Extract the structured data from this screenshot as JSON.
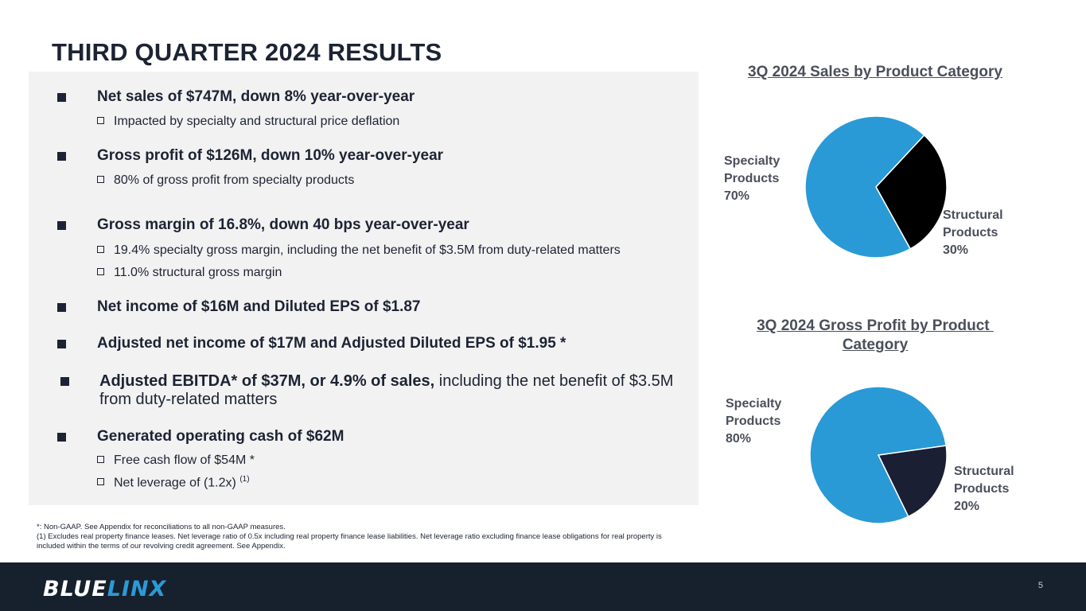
{
  "slide": {
    "title": "THIRD QUARTER 2024 RESULTS",
    "page_number": "5"
  },
  "bullets": {
    "net_sales": {
      "bold": "Net sales of $747M",
      "rest": ", down 8% year-over-year",
      "subs": [
        "Impacted by specialty and structural price deflation"
      ]
    },
    "gross_profit": {
      "text": "Gross profit of $126M, down 10% year-over-year",
      "subs": [
        "80% of gross profit from specialty products"
      ]
    },
    "gross_margin": {
      "text": "Gross margin of 16.8%, down 40 bps year-over-year",
      "subs": [
        "19.4% specialty gross margin, including the net benefit of $3.5M from duty-related matters",
        "11.0% structural gross margin"
      ]
    },
    "net_income": {
      "text": "Net income of $16M and Diluted EPS of $1.87"
    },
    "adj_net_income": {
      "text": "Adjusted net income of $17M and Adjusted Diluted EPS of $1.95 *"
    },
    "adj_ebitda": {
      "bold": "Adjusted EBITDA* of $37M, or 4.9% of sales,",
      "rest_line1": " including the net benefit of $3.5M",
      "rest_line2": "from duty-related matters"
    },
    "cash": {
      "text": "Generated operating cash of $62M",
      "subs": [
        "Free cash flow of $54M *",
        "Net leverage of (1.2x)"
      ],
      "sup": "(1)"
    }
  },
  "footnotes": {
    "line1": "*: Non-GAAP.  See Appendix for reconciliations to all non-GAAP measures.",
    "line2": "(1) Excludes real property finance leases. Net leverage ratio of 0.5x including real property finance lease liabilities.  Net leverage ratio excluding finance lease obligations for real property is included within the terms of our revolving credit agreement.  See Appendix."
  },
  "footer": {
    "logo_part1": "BLUE",
    "logo_part2": "LINX"
  },
  "colors": {
    "specialty": "#2a9ad6",
    "structural_sales": "#000000",
    "structural_gp": "#1b1f33",
    "footer": "#17202d"
  },
  "chart_data": [
    {
      "type": "pie",
      "title": "3Q 2024 Sales by Product Category",
      "slices": [
        {
          "name": "Specialty Products",
          "label_line1": "Specialty",
          "label_line2": "Products",
          "percent_label": "70%",
          "value": 70
        },
        {
          "name": "Structural Products",
          "label_line1": "Structural",
          "label_line2": "Products",
          "percent_label": "30%",
          "value": 30
        }
      ]
    },
    {
      "type": "pie",
      "title_line1": "3Q 2024 Gross Profit by Product ",
      "title_line2": "Category",
      "slices": [
        {
          "name": "Specialty Products",
          "label_line1": "Specialty",
          "label_line2": "Products",
          "percent_label": "80%",
          "value": 80
        },
        {
          "name": "Structural Products",
          "label_line1": "Structural",
          "label_line2": "Products",
          "percent_label": "20%",
          "value": 20
        }
      ]
    }
  ]
}
